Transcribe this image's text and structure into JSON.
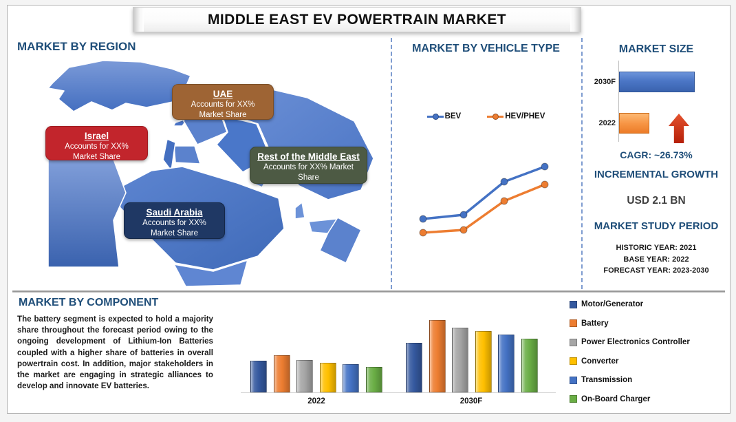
{
  "page_title": "MIDDLE EAST EV POWERTRAIN MARKET",
  "region_section": {
    "heading": "MARKET BY REGION",
    "callouts": [
      {
        "title": "UAE",
        "body_lines": [
          "Accounts for XX%",
          "Market Share"
        ],
        "bg": "#9E6434",
        "border": "#7A4E27"
      },
      {
        "title": "Israel",
        "body_lines": [
          "Accounts for XX%",
          "Market Share"
        ],
        "bg": "#C2252C",
        "border": "#9E1C22"
      },
      {
        "title": "Rest of the Middle East",
        "body_lines": [
          "Accounts for XX% Market",
          "Share"
        ],
        "bg": "#4D5A44",
        "border": "#3C4734"
      },
      {
        "title": "Saudi Arabia",
        "body_lines": [
          "Accounts for XX%",
          "Market Share"
        ],
        "bg": "#1F3864",
        "border": "#152847"
      }
    ]
  },
  "vehicle_section": {
    "heading": "MARKET BY VEHICLE TYPE"
  },
  "market_size_section": {
    "heading": "MARKET SIZE",
    "cagr": "CAGR:  ~26.73%"
  },
  "growth_section": {
    "heading": "INCREMENTAL GROWTH",
    "value": "USD 2.1 BN"
  },
  "study_period_section": {
    "heading": "MARKET STUDY PERIOD",
    "rows": [
      "HISTORIC YEAR: 2021",
      "BASE YEAR: 2022",
      "FORECAST YEAR: 2023-2030"
    ]
  },
  "component_section": {
    "heading": "MARKET BY COMPONENT",
    "paragraph": "The battery segment is expected to hold a majority share throughout the forecast period owing to the ongoing development of Lithium-Ion Batteries coupled with a higher share of batteries in overall powertrain cost. In addition, major stakeholders in the market are engaging in strategic alliances to develop and innovate EV batteries."
  },
  "chart_data": [
    {
      "id": "vehicle_type_trend",
      "type": "line",
      "title": "MARKET BY VEHICLE TYPE",
      "units": "relative (no axes or tick labels shown)",
      "legend_position": "top",
      "series": [
        {
          "name": "BEV",
          "color": "#4472C4",
          "values": [
            26,
            29,
            53,
            64
          ]
        },
        {
          "name": "HEV/PHEV",
          "color": "#ED7D31",
          "values": [
            16,
            18,
            39,
            51
          ]
        }
      ]
    },
    {
      "id": "market_size",
      "type": "bar",
      "orientation": "horizontal",
      "title": "MARKET SIZE",
      "categories": [
        "2030F",
        "2022"
      ],
      "values": [
        100,
        40
      ],
      "colors": [
        "#4472C4",
        "#F79646"
      ],
      "units": "relative (no axis values shown)",
      "annotation": "CAGR:  ~26.73%"
    },
    {
      "id": "market_by_component",
      "type": "bar",
      "title": "MARKET BY COMPONENT",
      "categories": [
        "2022",
        "2030F"
      ],
      "units": "relative (no y-axis shown)",
      "legend_position": "right",
      "series": [
        {
          "name": "Motor/Generator",
          "color": "#35599F",
          "values": [
            46,
            72
          ]
        },
        {
          "name": "Battery",
          "color": "#ED7D31",
          "values": [
            54,
            105
          ]
        },
        {
          "name": "Power Electronics Controller",
          "color": "#A6A6A6",
          "values": [
            47,
            94
          ]
        },
        {
          "name": "Converter",
          "color": "#FFC000",
          "values": [
            43,
            89
          ]
        },
        {
          "name": "Transmission",
          "color": "#4472C4",
          "values": [
            41,
            84
          ]
        },
        {
          "name": "On-Board Charger",
          "color": "#6AAE45",
          "values": [
            37,
            78
          ]
        }
      ]
    }
  ]
}
